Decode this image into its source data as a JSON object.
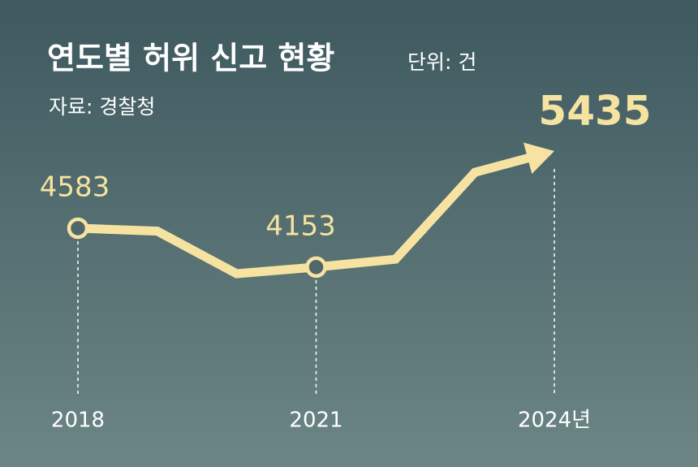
{
  "chart_data": {
    "type": "line",
    "title": "연도별 허위 신고 현황",
    "unit": "단위: 건",
    "source": "자료: 경찰청",
    "categories": [
      "2018",
      null,
      null,
      "2021",
      null,
      null,
      "2024년"
    ],
    "series": [
      {
        "name": "허위 신고",
        "color": "#f6e3a1",
        "values": [
          4583,
          4550,
          4080,
          4153,
          4240,
          5200,
          5435
        ]
      }
    ]
  }
}
